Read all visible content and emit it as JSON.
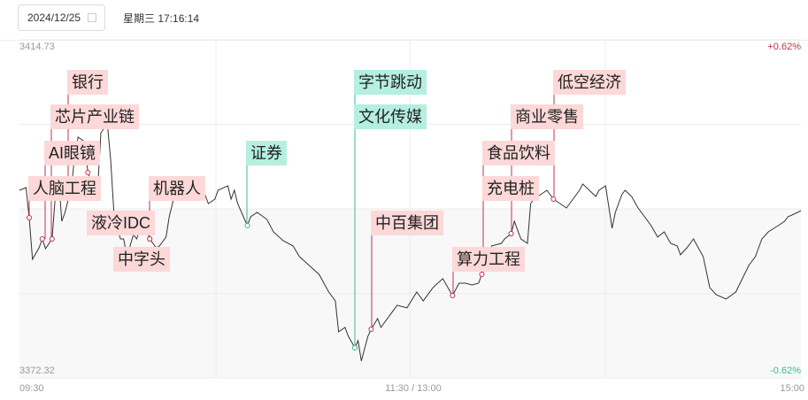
{
  "header": {
    "date": "2024/12/25",
    "datetime": "星期三 17:16:14",
    "calendar_icon": "calendar-icon"
  },
  "chart_data": {
    "type": "line",
    "y_max_label": "3414.73",
    "y_min_label": "3372.32",
    "ylim": [
      3372.32,
      3414.73
    ],
    "pct_max_label": "+0.62%",
    "pct_min_label": "-0.62%",
    "x_ticks": [
      "09:30",
      "11:30 / 13:00",
      "15:00"
    ],
    "grid": true,
    "colors": {
      "line": "#333333",
      "up": "#c0324b",
      "down": "#3cb89a",
      "up_bg": "#fcd8d8",
      "down_bg": "#b5efdf"
    },
    "series": [
      [
        "09:30",
        3395.86
      ],
      [
        "09:32",
        3396.19
      ],
      [
        "09:33",
        3392.42
      ],
      [
        "09:34",
        3387.2
      ],
      [
        "09:36",
        3388.64
      ],
      [
        "09:37",
        3389.75
      ],
      [
        "09:38",
        3388.53
      ],
      [
        "09:40",
        3389.75
      ],
      [
        "09:41",
        3395.08
      ],
      [
        "09:42",
        3397.52
      ],
      [
        "09:43",
        3391.97
      ],
      [
        "09:44",
        3393.08
      ],
      [
        "09:46",
        3396.41
      ],
      [
        "09:47",
        3400.3
      ],
      [
        "09:48",
        3402.52
      ],
      [
        "09:50",
        3401.96
      ],
      [
        "09:51",
        3398.08
      ],
      [
        "09:53",
        3395.86
      ],
      [
        "09:54",
        3395.86
      ],
      [
        "09:55",
        3403.07
      ],
      [
        "09:57",
        3404.18
      ],
      [
        "09:58",
        3399.74
      ],
      [
        "09:59",
        3393.08
      ],
      [
        "10:01",
        3389.75
      ],
      [
        "10:02",
        3389.75
      ],
      [
        "10:03",
        3387.53
      ],
      [
        "10:05",
        3390.31
      ],
      [
        "10:06",
        3389.75
      ],
      [
        "10:08",
        3391.97
      ],
      [
        "10:10",
        3389.75
      ],
      [
        "10:12",
        3388.64
      ],
      [
        "10:13",
        3388.87
      ],
      [
        "10:15",
        3389.98
      ],
      [
        "10:16",
        3392.53
      ],
      [
        "10:18",
        3395.86
      ],
      [
        "10:21",
        3394.75
      ],
      [
        "10:24",
        3394.75
      ],
      [
        "10:27",
        3395.3
      ],
      [
        "10:28",
        3394.19
      ],
      [
        "10:30",
        3394.75
      ],
      [
        "10:31",
        3395.86
      ],
      [
        "10:34",
        3396.41
      ],
      [
        "10:35",
        3394.75
      ],
      [
        "10:36",
        3395.86
      ],
      [
        "10:37",
        3394.19
      ],
      [
        "10:40",
        3391.42
      ],
      [
        "10:41",
        3392.53
      ],
      [
        "10:43",
        3393.08
      ],
      [
        "10:46",
        3392.2
      ],
      [
        "10:48",
        3390.64
      ],
      [
        "10:51",
        3389.53
      ],
      [
        "10:54",
        3388.87
      ],
      [
        "10:56",
        3387.53
      ],
      [
        "10:59",
        3386.42
      ],
      [
        "11:02",
        3385.31
      ],
      [
        "11:05",
        3383.09
      ],
      [
        "11:07",
        3381.98
      ],
      [
        "11:08",
        3378.1
      ],
      [
        "11:10",
        3378.65
      ],
      [
        "11:11",
        3377.54
      ],
      [
        "11:13",
        3376.1
      ],
      [
        "11:14",
        3376.99
      ],
      [
        "11:15",
        3374.44
      ],
      [
        "11:17",
        3377.54
      ],
      [
        "11:18",
        3378.43
      ],
      [
        "11:20",
        3379.76
      ],
      [
        "11:21",
        3378.65
      ],
      [
        "11:24",
        3380.32
      ],
      [
        "11:26",
        3381.43
      ],
      [
        "11:29",
        3381.1
      ],
      [
        "13:02",
        3383.09
      ],
      [
        "13:04",
        3381.98
      ],
      [
        "13:07",
        3383.65
      ],
      [
        "13:10",
        3384.76
      ],
      [
        "13:13",
        3382.65
      ],
      [
        "13:15",
        3384.2
      ],
      [
        "13:17",
        3384.2
      ],
      [
        "13:19",
        3383.98
      ],
      [
        "13:21",
        3384.2
      ],
      [
        "13:22",
        3385.31
      ],
      [
        "13:24",
        3386.98
      ],
      [
        "13:25",
        3388.87
      ],
      [
        "13:28",
        3389.2
      ],
      [
        "13:29",
        3389.75
      ],
      [
        "13:31",
        3390.42
      ],
      [
        "13:32",
        3391.97
      ],
      [
        "13:34",
        3389.75
      ],
      [
        "13:36",
        3389.2
      ],
      [
        "13:37",
        3394.19
      ],
      [
        "13:38",
        3394.75
      ],
      [
        "13:40",
        3395.3
      ],
      [
        "13:42",
        3395.86
      ],
      [
        "13:44",
        3394.75
      ],
      [
        "13:46",
        3394.19
      ],
      [
        "13:48",
        3393.64
      ],
      [
        "13:50",
        3394.75
      ],
      [
        "13:52",
        3395.86
      ],
      [
        "13:53",
        3396.64
      ],
      [
        "13:55",
        3395.86
      ],
      [
        "13:57",
        3395.08
      ],
      [
        "13:58",
        3395.86
      ],
      [
        "14:00",
        3396.41
      ],
      [
        "14:02",
        3391.09
      ],
      [
        "14:03",
        3393.08
      ],
      [
        "14:05",
        3395.3
      ],
      [
        "14:06",
        3395.86
      ],
      [
        "14:08",
        3395.08
      ],
      [
        "14:10",
        3393.64
      ],
      [
        "14:12",
        3392.53
      ],
      [
        "14:14",
        3391.42
      ],
      [
        "14:16",
        3389.98
      ],
      [
        "14:18",
        3390.64
      ],
      [
        "14:20",
        3389.2
      ],
      [
        "14:22",
        3388.87
      ],
      [
        "14:23",
        3387.76
      ],
      [
        "14:25",
        3388.64
      ],
      [
        "14:27",
        3389.75
      ],
      [
        "14:30",
        3387.53
      ],
      [
        "14:32",
        3383.65
      ],
      [
        "14:34",
        3382.76
      ],
      [
        "14:37",
        3382.21
      ],
      [
        "14:40",
        3383.09
      ],
      [
        "14:42",
        3384.76
      ],
      [
        "14:44",
        3386.42
      ],
      [
        "14:46",
        3387.53
      ],
      [
        "14:48",
        3389.75
      ],
      [
        "14:50",
        3390.64
      ],
      [
        "14:53",
        3391.42
      ],
      [
        "14:55",
        3391.97
      ],
      [
        "14:56",
        3392.53
      ],
      [
        "14:59",
        3393.08
      ],
      [
        "15:00",
        3393.31
      ]
    ],
    "annotations": [
      {
        "text": "银行",
        "kind": "up",
        "time": "09:46"
      },
      {
        "text": "芯片产业链",
        "kind": "up",
        "time": "09:40"
      },
      {
        "text": "AI眼镜",
        "kind": "up",
        "time": "09:37"
      },
      {
        "text": "人脑工程",
        "kind": "up",
        "time": "09:33"
      },
      {
        "text": "液冷IDC",
        "kind": "up",
        "time": "09:51"
      },
      {
        "text": "中字头",
        "kind": "up",
        "time": "10:10"
      },
      {
        "text": "机器人",
        "kind": "up",
        "time": "10:10"
      },
      {
        "text": "证券",
        "kind": "down",
        "time": "10:40"
      },
      {
        "text": "字节跳动",
        "kind": "down",
        "time": "11:13"
      },
      {
        "text": "文化传媒",
        "kind": "down",
        "time": "11:13"
      },
      {
        "text": "中百集团",
        "kind": "up",
        "time": "11:18"
      },
      {
        "text": "算力工程",
        "kind": "up",
        "time": "13:13"
      },
      {
        "text": "充电桩",
        "kind": "up",
        "time": "13:22"
      },
      {
        "text": "食品饮料",
        "kind": "up",
        "time": "13:31"
      },
      {
        "text": "商业零售",
        "kind": "up",
        "time": "13:31"
      },
      {
        "text": "低空经济",
        "kind": "up",
        "time": "13:44"
      }
    ]
  }
}
